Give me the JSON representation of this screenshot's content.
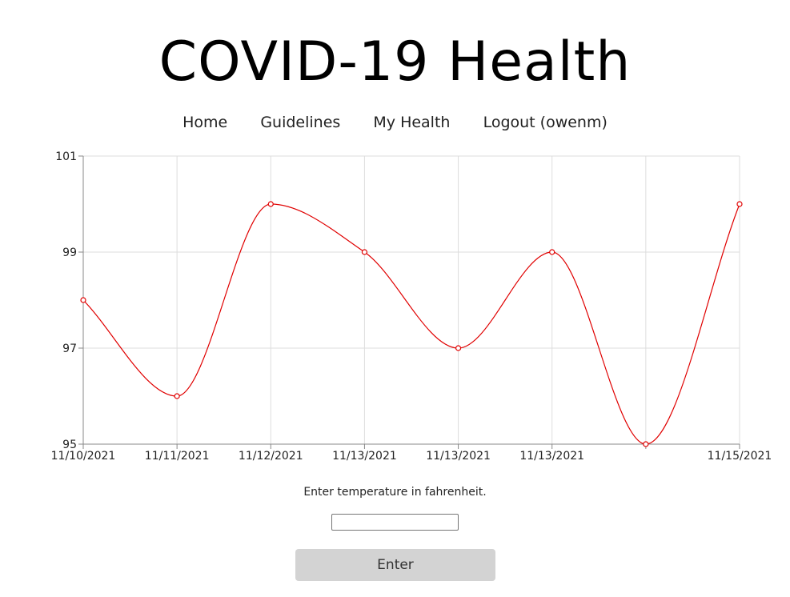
{
  "header": {
    "title": "COVID-19 Health"
  },
  "nav": {
    "items": [
      {
        "label": "Home"
      },
      {
        "label": "Guidelines"
      },
      {
        "label": "My Health"
      },
      {
        "label": "Logout (owenm)"
      }
    ]
  },
  "chart_data": {
    "type": "line",
    "title": "",
    "xlabel": "",
    "ylabel": "",
    "x": [
      "11/10/2021",
      "11/11/2021",
      "11/12/2021",
      "11/13/2021",
      "11/13/2021",
      "11/13/2021",
      "",
      "11/15/2021"
    ],
    "series": [
      {
        "values": [
          98,
          96,
          100,
          99,
          97,
          99,
          95,
          100
        ]
      }
    ],
    "yticks": [
      "95",
      "97",
      "99",
      "101"
    ],
    "ylim": [
      95,
      101
    ],
    "grid": true,
    "line_color": "#e00000",
    "curve": "smooth"
  },
  "form": {
    "prompt": "Enter temperature in fahrenheit.",
    "input_value": "",
    "input_placeholder": "",
    "submit_label": "Enter"
  }
}
